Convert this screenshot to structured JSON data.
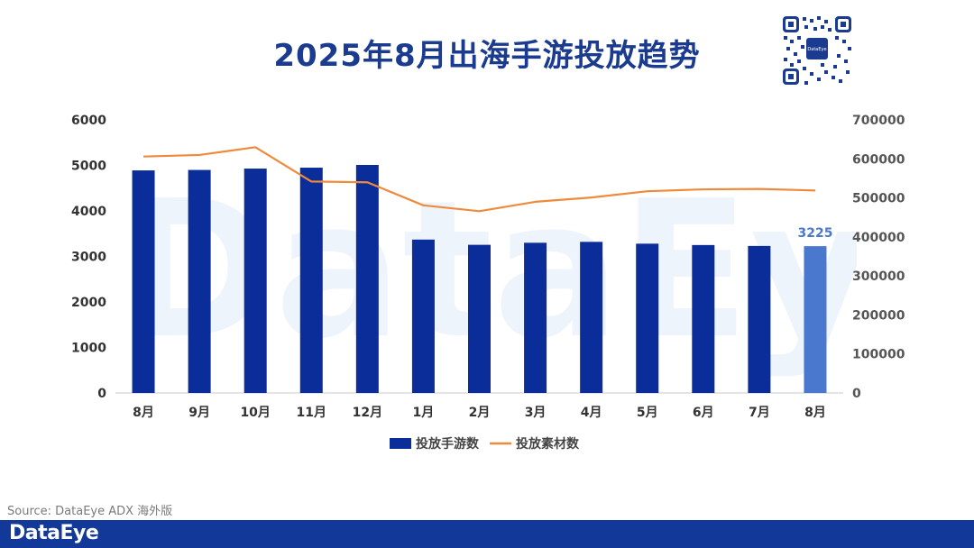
{
  "title": "2025年8月出海手游投放趋势",
  "watermark_text": "DataEye",
  "qr_label": "DataEye",
  "source": "Source: DataEye ADX 海外版",
  "brand": "DataEye",
  "colors": {
    "bar": "#0a2d9a",
    "bar_highlight": "#4a78cf",
    "line": "#ef8a3c",
    "title": "#1a3b8f",
    "footer": "#12389a"
  },
  "chart_data": {
    "type": "bar",
    "title": "2025年8月出海手游投放趋势",
    "categories": [
      "8月",
      "9月",
      "10月",
      "11月",
      "12月",
      "1月",
      "2月",
      "3月",
      "4月",
      "5月",
      "6月",
      "7月",
      "8月"
    ],
    "series": [
      {
        "name": "投放手游数",
        "type": "bar",
        "axis": "left",
        "values": [
          4890,
          4900,
          4930,
          4950,
          5010,
          3370,
          3255,
          3300,
          3320,
          3280,
          3250,
          3230,
          3225
        ]
      },
      {
        "name": "投放素材数",
        "type": "line",
        "axis": "right",
        "values": [
          606000,
          610000,
          630000,
          542000,
          540000,
          481000,
          466000,
          490000,
          501000,
          517000,
          522000,
          523000,
          519000
        ]
      }
    ],
    "highlight_index": 12,
    "annotation": "3225",
    "left_axis": {
      "ylim": [
        0,
        6000
      ],
      "ticks": [
        "0",
        "1000",
        "2000",
        "3000",
        "4000",
        "5000",
        "6000"
      ]
    },
    "right_axis": {
      "ylim": [
        0,
        700000
      ],
      "ticks": [
        "0",
        "100000",
        "200000",
        "300000",
        "400000",
        "500000",
        "600000",
        "700000"
      ]
    },
    "legend": [
      "投放手游数",
      "投放素材数"
    ],
    "legend_position": "bottom",
    "grid": false
  }
}
